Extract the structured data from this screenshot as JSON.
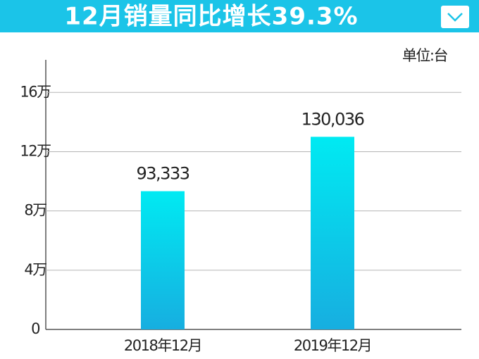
{
  "chart_data": {
    "type": "bar",
    "title": "12月销量同比增长39.3%",
    "unit_label": "单位:台",
    "categories": [
      "2018年12月",
      "2019年12月"
    ],
    "values": [
      93333,
      130036
    ],
    "value_labels": [
      "93,333",
      "130,036"
    ],
    "color": "#00eaf2",
    "ylim": [
      0,
      182000
    ],
    "yticks": [
      0,
      {
        "value": 40000,
        "label": "4万"
      },
      {
        "value": 80000,
        "label": "8万"
      },
      {
        "value": 120000,
        "label": "12万"
      },
      {
        "value": 160000,
        "label": "16万"
      }
    ],
    "grid": true
  }
}
